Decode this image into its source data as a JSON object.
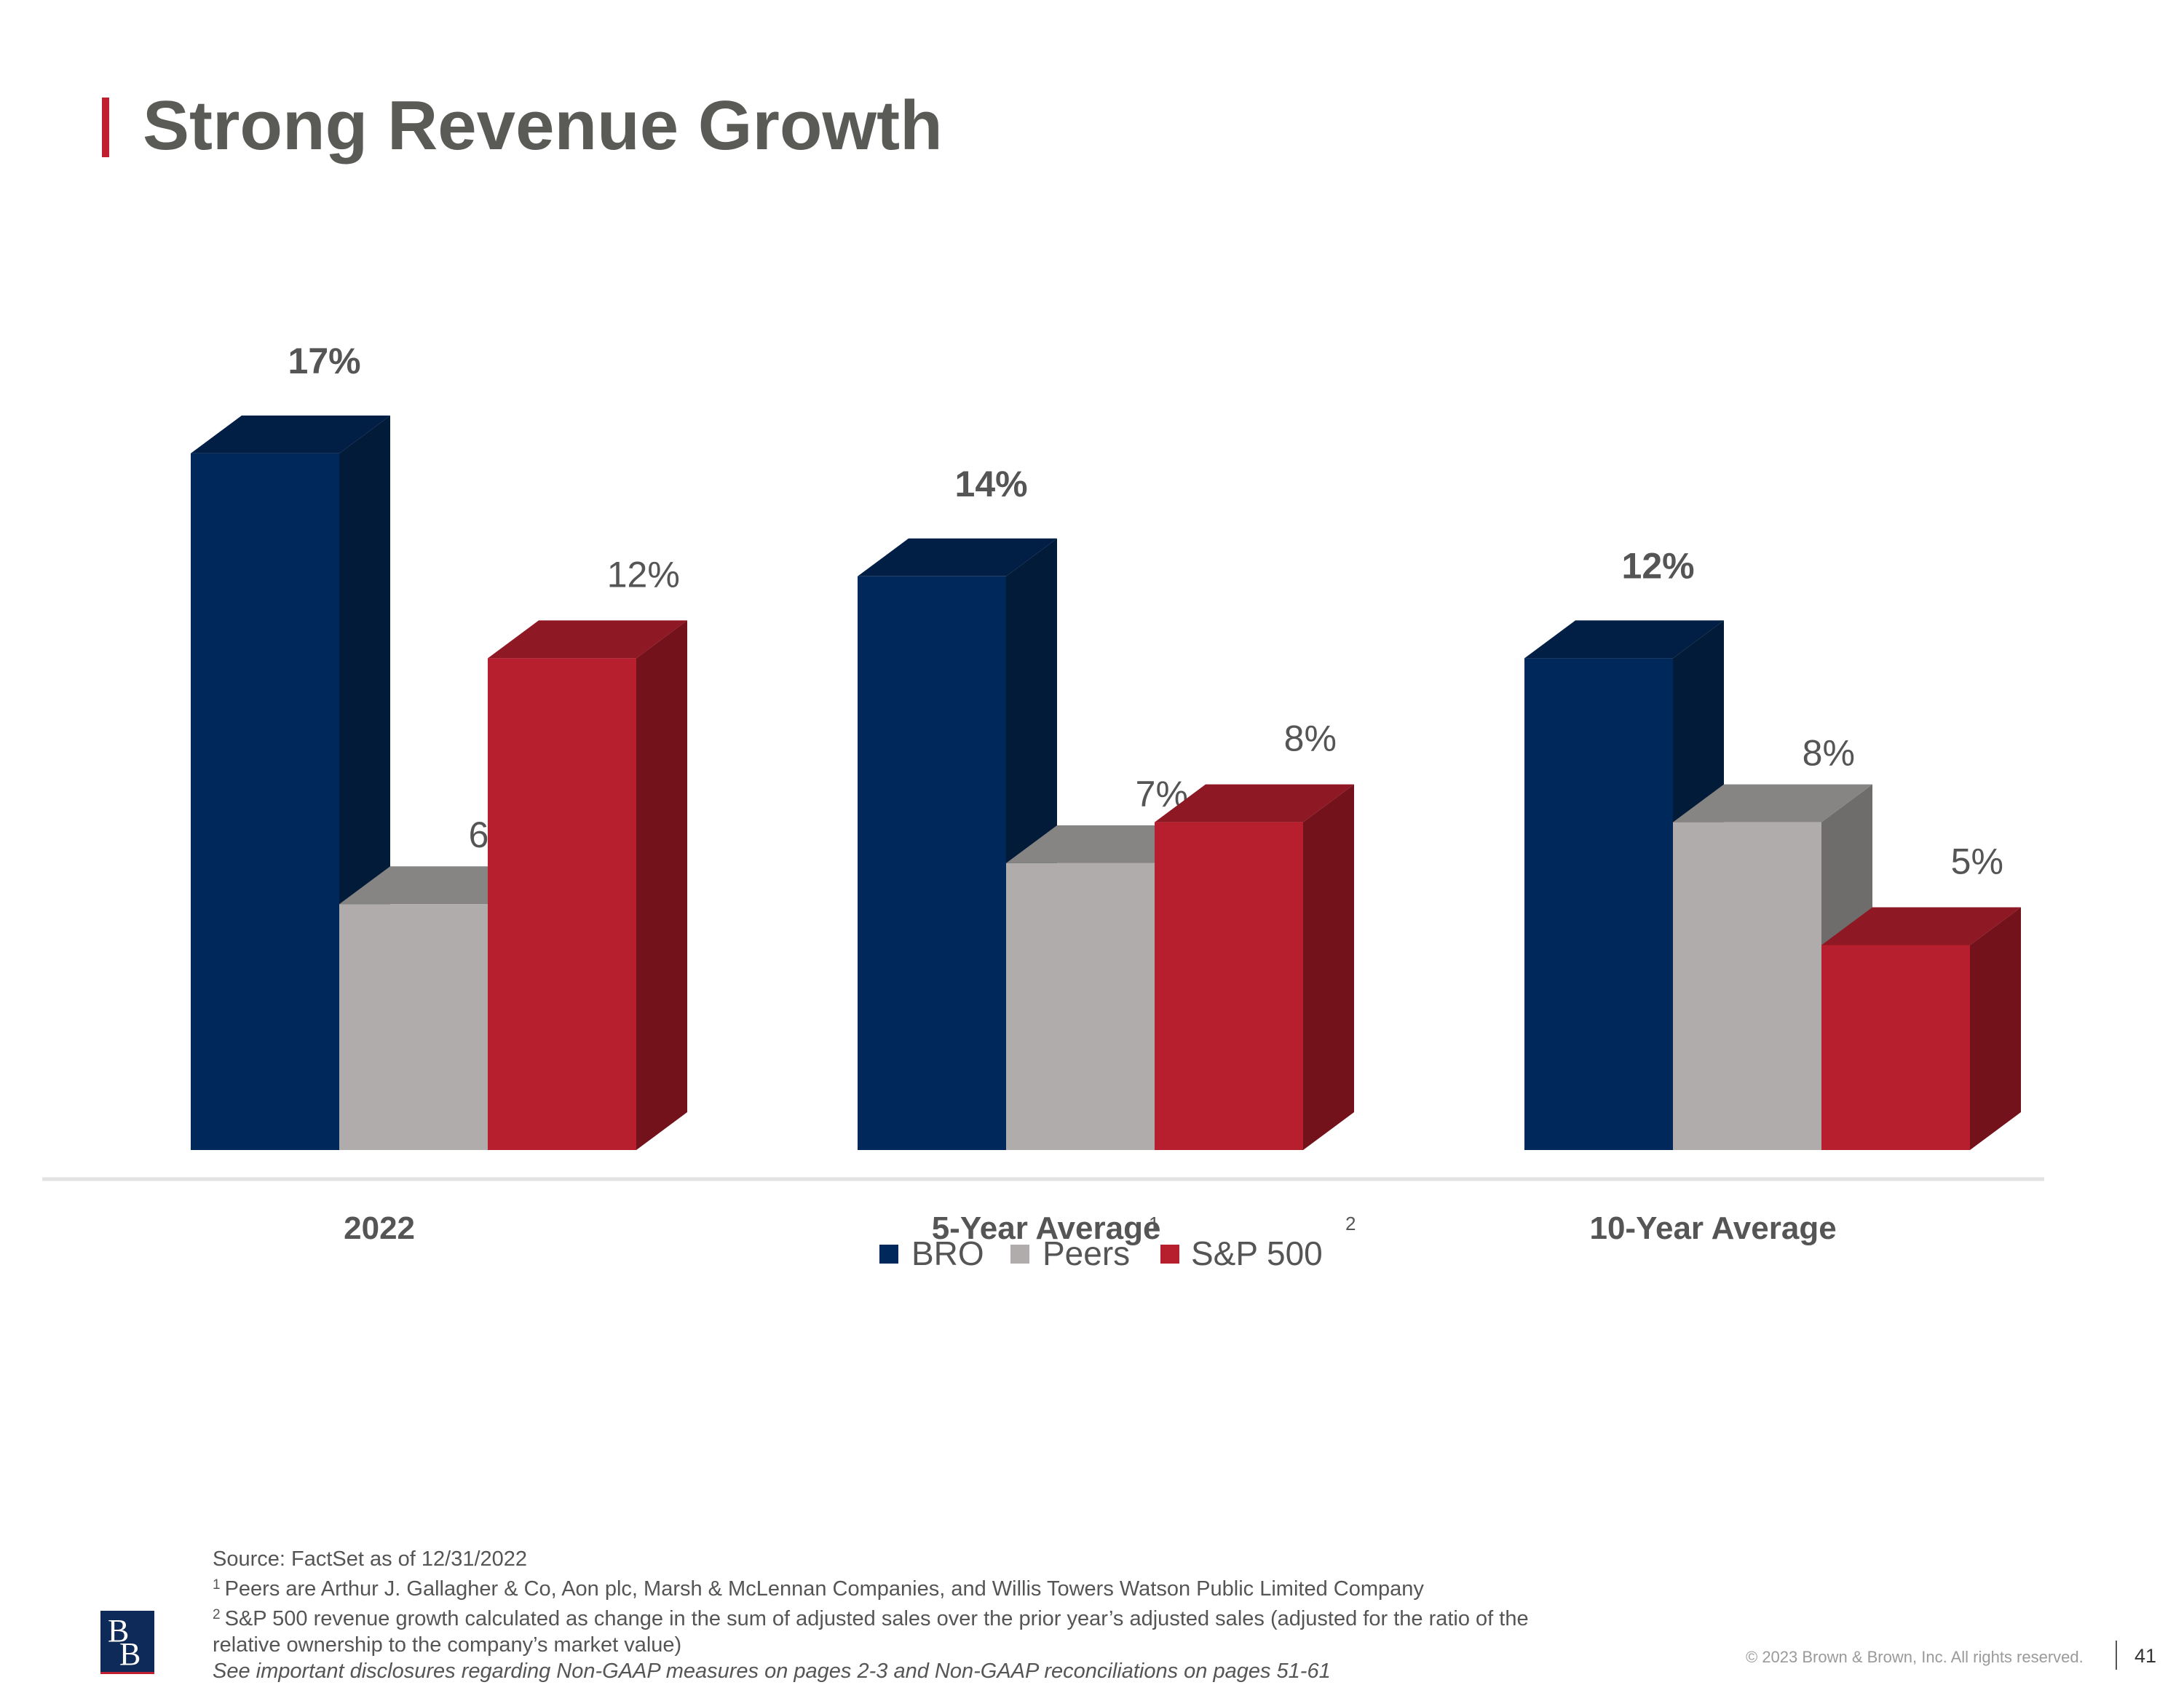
{
  "page": {
    "title": "Strong Revenue Growth",
    "footnotes": {
      "source": "Source: FactSet as of 12/31/2022",
      "note1_marker": "1",
      "note1": "Peers are Arthur J. Gallagher & Co, Aon plc, Marsh & McLennan Companies, and Willis Towers Watson Public Limited Company",
      "note2_marker": "2",
      "note2_line1": "S&P 500 revenue growth calculated as change in the sum of adjusted sales over the prior year’s adjusted sales (adjusted for the ratio of the",
      "note2_line2": "relative ownership to the company’s market value)",
      "disclosure": "See important disclosures regarding Non-GAAP measures on pages 2-3 and Non-GAAP reconciliations on pages 51-61"
    },
    "logo_text": "BB",
    "copyright": "© 2023 Brown & Brown, Inc. All rights reserved.",
    "page_number": "41"
  },
  "chart_data": {
    "type": "bar",
    "style": "3d-clustered",
    "title": "Strong Revenue Growth",
    "xlabel": "",
    "ylabel": "",
    "ylim": [
      0,
      20
    ],
    "grid": false,
    "legend_position": "bottom-center",
    "categories": [
      "2022",
      "5-Year Average",
      "10-Year Average"
    ],
    "series": [
      {
        "name": "BRO",
        "values": [
          17,
          14,
          12
        ],
        "labels": [
          "17%",
          "14%",
          "12%"
        ],
        "color": "#00285a",
        "top_color": "#011f45",
        "side_color": "#021b38",
        "label_bold": true
      },
      {
        "name": "Peers",
        "values": [
          6,
          7,
          8
        ],
        "labels": [
          "6%",
          "7%",
          "8%"
        ],
        "color": "#b0acab",
        "top_color": "#878584",
        "side_color": "#6f6d6c",
        "label_bold": false
      },
      {
        "name": "S&P 500",
        "values": [
          12,
          8,
          5
        ],
        "labels": [
          "12%",
          "8%",
          "5%"
        ],
        "color": "#b71f2e",
        "top_color": "#8e1823",
        "side_color": "#73121b",
        "label_bold": false
      }
    ],
    "annotations": [
      {
        "text": "1",
        "note": "superscript beside 5-Year Average"
      },
      {
        "text": "2",
        "note": "superscript footnote marker"
      }
    ]
  }
}
